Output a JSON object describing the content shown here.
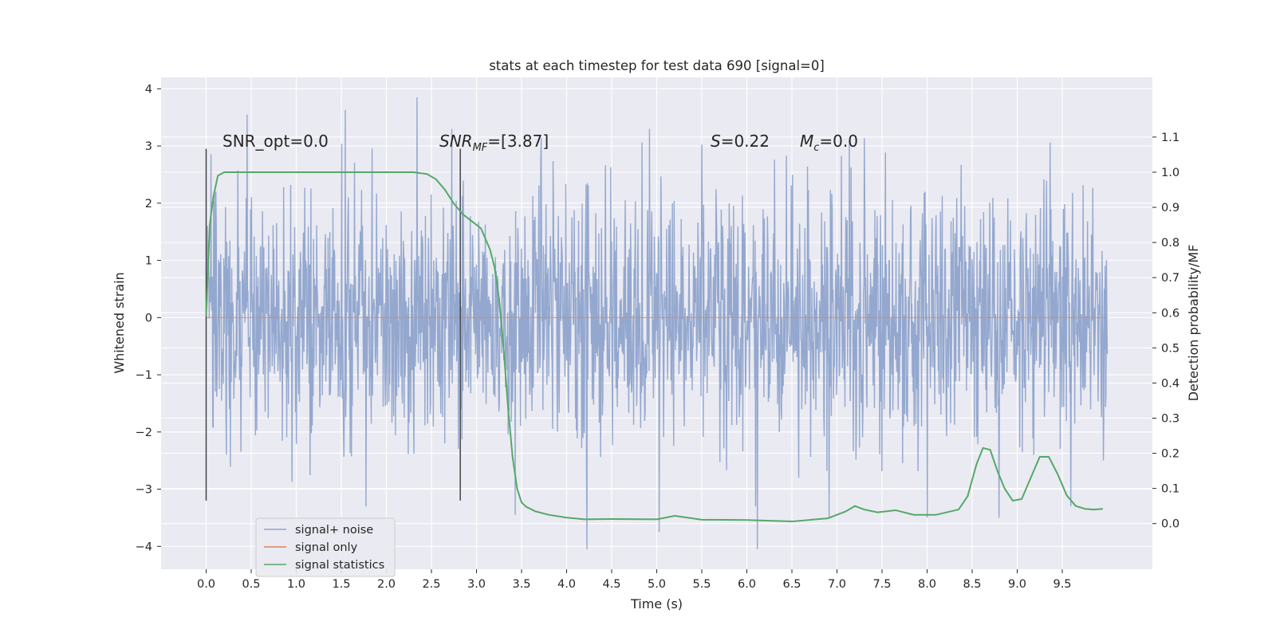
{
  "chart_data": {
    "type": "line",
    "title": "stats at each timestep for test data 690 [signal=0]",
    "xlabel": "Time (s)",
    "ylabel": "Whitened strain",
    "ylabel_right": "Detection probability/MF",
    "xlim": [
      -0.5,
      10.5
    ],
    "ylim": [
      -4.4,
      4.2
    ],
    "ylim_right": [
      -0.13,
      1.27
    ],
    "x_ticks": [
      0.0,
      0.5,
      1.0,
      1.5,
      2.0,
      2.5,
      3.0,
      3.5,
      4.0,
      4.5,
      5.0,
      5.5,
      6.0,
      6.5,
      7.0,
      7.5,
      8.0,
      8.5,
      9.0,
      9.5
    ],
    "x_tick_labels": [
      "0.0",
      "0.5",
      "1.0",
      "1.5",
      "2.0",
      "2.5",
      "3.0",
      "3.5",
      "4.0",
      "4.5",
      "5.0",
      "5.5",
      "6.0",
      "6.5",
      "7.0",
      "7.5",
      "8.0",
      "8.5",
      "9.0",
      "9.5"
    ],
    "y_ticks": [
      -4,
      -3,
      -2,
      -1,
      0,
      1,
      2,
      3,
      4
    ],
    "y_tick_labels": [
      "−4",
      "−3",
      "−2",
      "−1",
      "0",
      "1",
      "2",
      "3",
      "4"
    ],
    "y_right_ticks": [
      0.0,
      0.1,
      0.2,
      0.3,
      0.4,
      0.5,
      0.6,
      0.7,
      0.8,
      0.9,
      1.0,
      1.1
    ],
    "y_right_tick_labels": [
      "0.0",
      "0.1",
      "0.2",
      "0.3",
      "0.4",
      "0.5",
      "0.6",
      "0.7",
      "0.8",
      "0.9",
      "1.0",
      "1.1"
    ],
    "grid": true,
    "legend_position": "lower-left",
    "annotations": {
      "snr_opt": "SNR_opt=0.0",
      "snr_mf_main": "SNR",
      "snr_mf_sub": "MF",
      "snr_mf_value": "=[3.87]",
      "s_label": "S",
      "s_value": "=0.22",
      "mc_label": "M",
      "mc_sub": "c",
      "mc_value": "=0.0"
    },
    "markers": [
      {
        "x": 0.0,
        "y_low": -3.2,
        "y_high": 2.95
      },
      {
        "x": 2.82,
        "y_low": -3.2,
        "y_high": 2.95
      }
    ],
    "series": [
      {
        "name": "signal+ noise",
        "color": "#8fa4cc",
        "axis": "left",
        "x_range": [
          0.0,
          10.0
        ],
        "samples": 2048,
        "envelope_typical": 1.1,
        "peaks": [
          3.55,
          3.63,
          3.85,
          -3.45,
          -4.05,
          -3.75,
          -4.05,
          -3.5,
          -3.5,
          -3.5,
          -3.3
        ]
      },
      {
        "name": "signal only",
        "color": "#dd8452",
        "axis": "left",
        "x": [
          0.0,
          10.0
        ],
        "y": [
          0.0,
          0.0
        ]
      },
      {
        "name": "signal statistics",
        "color": "#55a868",
        "axis": "right",
        "x": [
          0.0,
          0.04,
          0.08,
          0.13,
          0.2,
          0.3,
          0.5,
          1.0,
          1.5,
          2.0,
          2.3,
          2.45,
          2.55,
          2.65,
          2.75,
          2.85,
          2.95,
          3.05,
          3.15,
          3.2,
          3.25,
          3.3,
          3.35,
          3.4,
          3.45,
          3.5,
          3.55,
          3.65,
          3.8,
          4.0,
          4.2,
          4.5,
          5.0,
          5.2,
          5.5,
          6.0,
          6.5,
          6.9,
          7.1,
          7.2,
          7.3,
          7.45,
          7.65,
          7.85,
          8.1,
          8.35,
          8.45,
          8.55,
          8.62,
          8.7,
          8.78,
          8.86,
          8.95,
          9.05,
          9.15,
          9.25,
          9.35,
          9.45,
          9.55,
          9.65,
          9.75,
          9.85,
          9.95
        ],
        "y": [
          0.59,
          0.85,
          0.93,
          0.99,
          1.0,
          1.0,
          1.0,
          1.0,
          1.0,
          1.0,
          1.0,
          0.995,
          0.98,
          0.95,
          0.91,
          0.88,
          0.86,
          0.84,
          0.78,
          0.73,
          0.64,
          0.5,
          0.33,
          0.19,
          0.1,
          0.06,
          0.048,
          0.035,
          0.025,
          0.017,
          0.012,
          0.013,
          0.012,
          0.022,
          0.011,
          0.01,
          0.006,
          0.015,
          0.035,
          0.05,
          0.04,
          0.032,
          0.038,
          0.025,
          0.025,
          0.04,
          0.078,
          0.17,
          0.215,
          0.21,
          0.15,
          0.1,
          0.065,
          0.07,
          0.13,
          0.19,
          0.19,
          0.14,
          0.08,
          0.05,
          0.042,
          0.04,
          0.042
        ]
      }
    ]
  },
  "colors": {
    "plot_background": "#eaeaf2",
    "grid": "#ffffff",
    "marker_line": "#444444",
    "text": "#262626"
  }
}
